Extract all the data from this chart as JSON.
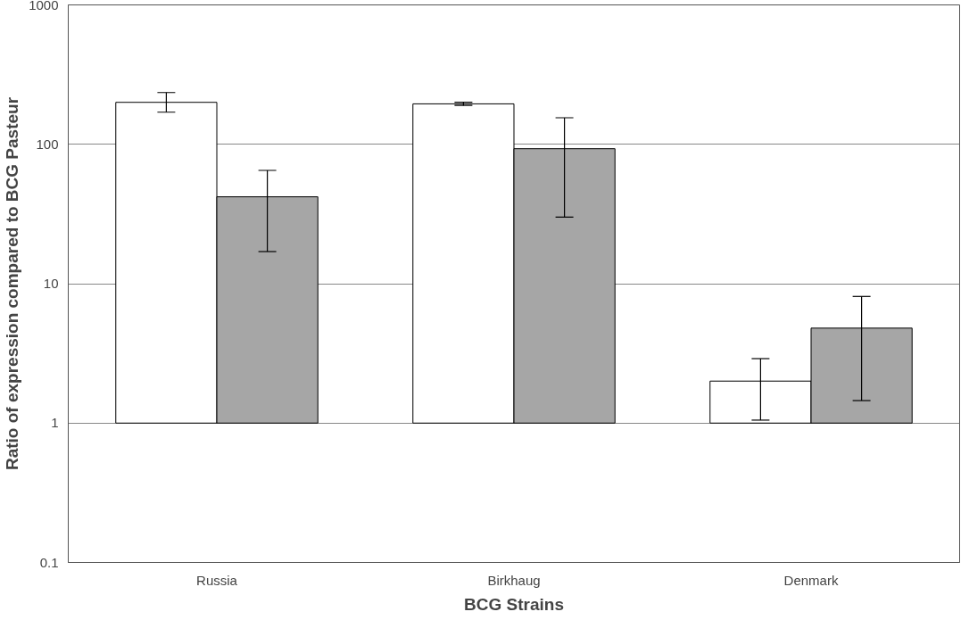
{
  "chart_data": {
    "type": "bar",
    "xlabel": "BCG Strains",
    "ylabel": "Ratio of expression compared to BCG Pasteur",
    "categories": [
      "Russia",
      "Birkhaug",
      "Denmark"
    ],
    "log": "y",
    "ylim": [
      0.1,
      1000
    ],
    "yticks": [
      0.1,
      1,
      10,
      100,
      1000
    ],
    "grid": "y",
    "series": [
      {
        "color": "#ffffff",
        "base": [
          1,
          1,
          1
        ],
        "values": [
          199,
          194,
          1
        ],
        "errors": [
          [
            170,
            235
          ],
          [
            190,
            200
          ],
          [
            1.05,
            2.9
          ]
        ]
      },
      {
        "color": "#a6a6a6",
        "base": [
          1,
          1,
          1
        ],
        "values": [
          41,
          92,
          3.8
        ],
        "errors": [
          [
            17,
            65
          ],
          [
            30,
            155
          ],
          [
            1.45,
            8.1
          ]
        ]
      }
    ]
  }
}
